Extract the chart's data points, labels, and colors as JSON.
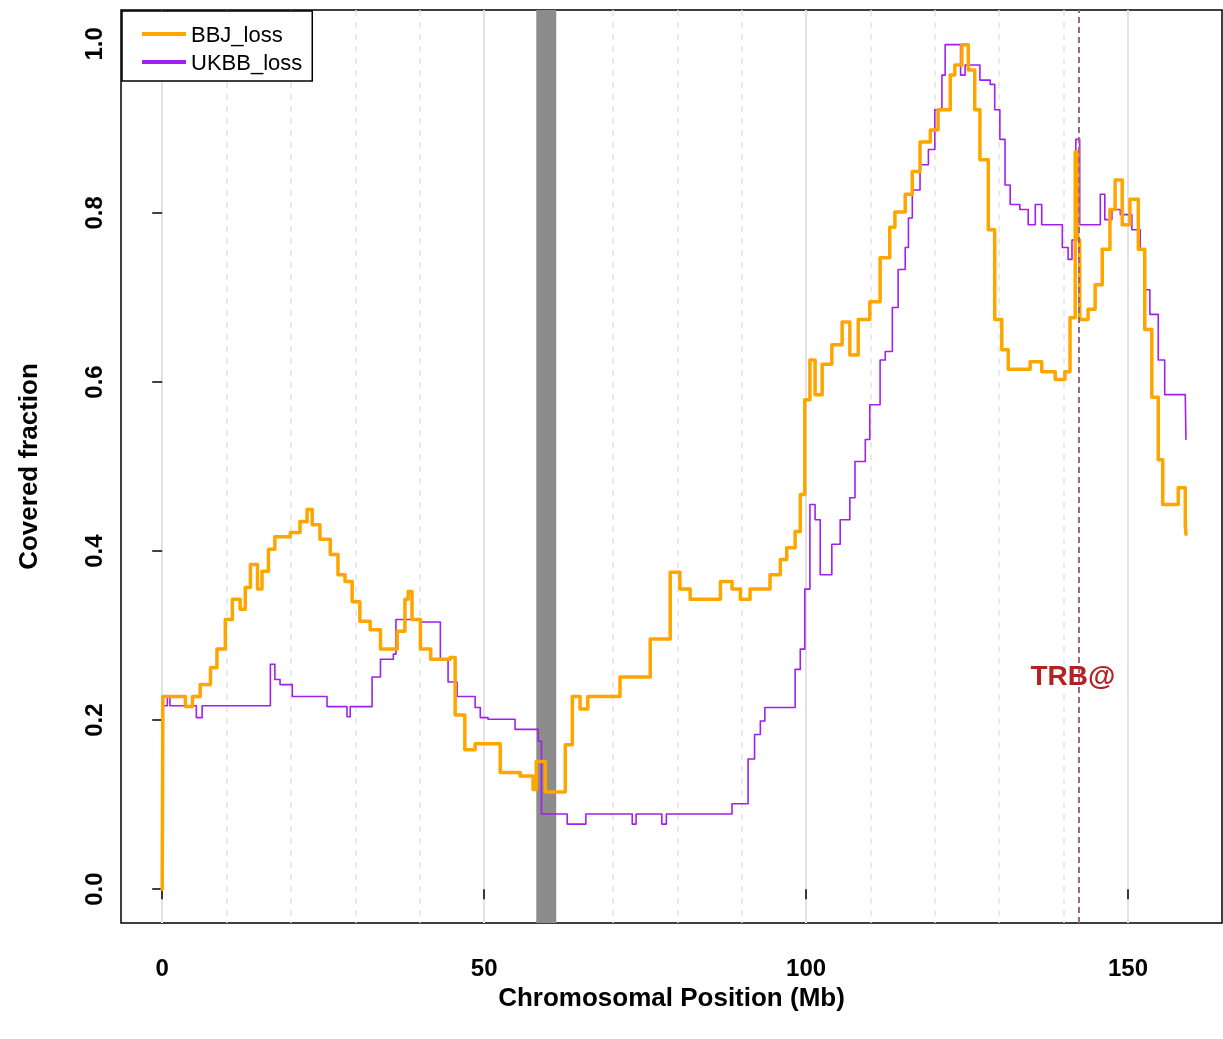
{
  "chart_data": {
    "type": "step",
    "xlabel": "Chromosomal Position (Mb)",
    "ylabel": "Covered fraction",
    "xlim": [
      -6.4,
      164.6
    ],
    "xticks": [
      0,
      50,
      100,
      150
    ],
    "ylim": [
      -0.04,
      1.04
    ],
    "yticks": [
      {
        "value": 0,
        "label": "0.0"
      },
      {
        "value": 0.2,
        "label": "0.2"
      },
      {
        "value": 0.4,
        "label": "0.4"
      },
      {
        "value": 0.6,
        "label": "0.6"
      },
      {
        "value": 0.8,
        "label": "0.8"
      },
      {
        "value": 1,
        "label": "1.0"
      }
    ],
    "grid": "x",
    "legend": "top left",
    "marker": "none",
    "line_style": "solid",
    "series": [
      {
        "name": "BBJ_loss",
        "color": "#ffa500",
        "x": [
          0,
          0.1,
          2.8,
          3.6,
          4.7,
          5.9,
          7.5,
          8.5,
          9.8,
          10.9,
          12.1,
          12.9,
          13.7,
          14.8,
          15.5,
          16.5,
          17.5,
          19.9,
          21.4,
          22.5,
          23.3,
          24.5,
          26.1,
          27.3,
          28.4,
          29.5,
          30.7,
          32.3,
          33.9,
          35.4,
          36.5,
          37.7,
          38.2,
          38.8,
          40.1,
          41.7,
          43.2,
          44.7,
          45.5,
          47,
          48.6,
          50.9,
          52.5,
          55.6,
          57.6,
          58.1,
          59.5,
          61.8,
          62.6,
          63.7,
          64.9,
          66.1,
          69.6,
          71.1,
          75,
          75.8,
          77.3,
          78.9,
          80.4,
          82,
          85.9,
          86.7,
          88.5,
          89.8,
          91.3,
          93.6,
          94.4,
          96,
          97,
          98.3,
          99.1,
          99.8,
          100.6,
          101.4,
          102.5,
          104,
          105.6,
          106.8,
          108.1,
          109.9,
          111.5,
          113,
          113.8,
          115.4,
          116.5,
          117.7,
          119.3,
          120.5,
          122.4,
          123.1,
          124.2,
          125.2,
          126.2,
          127,
          128.3,
          129.3,
          130.4,
          131.4,
          133.2,
          134.8,
          136.6,
          138.7,
          140.2,
          141,
          141.8,
          142.2,
          142.5,
          143.8,
          144.9,
          146,
          147.2,
          148,
          149.1,
          150.3,
          151.6,
          152.6,
          153.7,
          154.7,
          155.4,
          156.8,
          157.8,
          158.9,
          159
        ],
        "values": [
          0,
          0.228,
          0.228,
          0.216,
          0.228,
          0.242,
          0.262,
          0.284,
          0.319,
          0.343,
          0.331,
          0.357,
          0.384,
          0.355,
          0.376,
          0.402,
          0.417,
          0.422,
          0.435,
          0.449,
          0.431,
          0.414,
          0.396,
          0.372,
          0.364,
          0.34,
          0.317,
          0.307,
          0.284,
          0.284,
          0.305,
          0.343,
          0.352,
          0.319,
          0.284,
          0.272,
          0.272,
          0.274,
          0.206,
          0.165,
          0.172,
          0.172,
          0.138,
          0.134,
          0.118,
          0.151,
          0.115,
          0.115,
          0.171,
          0.228,
          0.213,
          0.228,
          0.228,
          0.251,
          0.251,
          0.296,
          0.296,
          0.375,
          0.355,
          0.343,
          0.343,
          0.364,
          0.355,
          0.343,
          0.355,
          0.355,
          0.372,
          0.39,
          0.404,
          0.423,
          0.467,
          0.579,
          0.626,
          0.585,
          0.621,
          0.644,
          0.671,
          0.632,
          0.674,
          0.695,
          0.747,
          0.783,
          0.801,
          0.822,
          0.849,
          0.884,
          0.898,
          0.922,
          0.963,
          0.975,
          0.999,
          0.969,
          0.922,
          0.863,
          0.78,
          0.674,
          0.638,
          0.615,
          0.615,
          0.624,
          0.612,
          0.603,
          0.612,
          0.676,
          0.872,
          0.768,
          0.674,
          0.686,
          0.715,
          0.757,
          0.804,
          0.839,
          0.786,
          0.816,
          0.757,
          0.662,
          0.582,
          0.508,
          0.455,
          0.455,
          0.475,
          0.431,
          0.42
        ]
      },
      {
        "name": "UKBB_loss",
        "color": "#a020f0",
        "x": [
          0,
          0.1,
          0.8,
          1.2,
          4.8,
          5.3,
          6.2,
          10.6,
          16.8,
          17.5,
          18.3,
          20.2,
          25.3,
          25.6,
          28.4,
          28.7,
          29.2,
          31.5,
          32.6,
          33.9,
          35.9,
          36.3,
          38.5,
          40.1,
          42.7,
          43.2,
          44.4,
          45.8,
          47,
          48.6,
          49.4,
          50.6,
          54.8,
          58.4,
          58.9,
          62.6,
          62.9,
          65.4,
          65.8,
          72.7,
          73,
          73.6,
          77.3,
          77.6,
          78.3,
          88.2,
          88.5,
          90.5,
          91,
          92,
          92.9,
          93.6,
          97.5,
          98.3,
          99.1,
          99.8,
          100.6,
          101.4,
          102.2,
          103.1,
          104,
          105.3,
          106.8,
          107.6,
          109.2,
          109.9,
          111.5,
          112.3,
          113.4,
          114.3,
          115.4,
          115.9,
          116.5,
          117.7,
          119,
          120,
          121.1,
          121.6,
          123.1,
          124,
          124.7,
          126.2,
          127,
          128.6,
          129.3,
          130.1,
          130.9,
          131.7,
          133.2,
          134.5,
          135.6,
          136.6,
          138.7,
          139.8,
          140.7,
          141.3,
          141.9,
          142.5,
          144.1,
          145.7,
          146.4,
          147.5,
          148.8,
          149.5,
          150.6,
          151.9,
          152.6,
          153.4,
          154.7,
          155.7,
          158.9,
          159
        ],
        "values": [
          0,
          0.217,
          0.228,
          0.217,
          0.217,
          0.203,
          0.217,
          0.217,
          0.266,
          0.248,
          0.242,
          0.228,
          0.228,
          0.216,
          0.216,
          0.204,
          0.216,
          0.216,
          0.251,
          0.272,
          0.278,
          0.319,
          0.319,
          0.316,
          0.316,
          0.272,
          0.245,
          0.228,
          0.228,
          0.215,
          0.203,
          0.201,
          0.189,
          0.175,
          0.089,
          0.089,
          0.077,
          0.077,
          0.089,
          0.089,
          0.077,
          0.089,
          0.089,
          0.077,
          0.089,
          0.089,
          0.101,
          0.101,
          0.154,
          0.183,
          0.199,
          0.215,
          0.215,
          0.26,
          0.284,
          0.355,
          0.455,
          0.437,
          0.372,
          0.372,
          0.408,
          0.437,
          0.463,
          0.506,
          0.532,
          0.573,
          0.626,
          0.636,
          0.688,
          0.733,
          0.759,
          0.794,
          0.827,
          0.857,
          0.875,
          0.922,
          0.963,
          0.999,
          0.999,
          0.963,
          0.975,
          0.975,
          0.957,
          0.952,
          0.922,
          0.887,
          0.833,
          0.81,
          0.804,
          0.786,
          0.81,
          0.786,
          0.786,
          0.759,
          0.745,
          0.768,
          0.887,
          0.786,
          0.786,
          0.822,
          0.792,
          0.804,
          0.798,
          0.798,
          0.78,
          0.757,
          0.709,
          0.68,
          0.626,
          0.585,
          0.583,
          0.532
        ]
      }
    ],
    "bands": [
      {
        "axis": "x",
        "from": 58.1,
        "to": 61.2,
        "color": "#8c8c8c"
      }
    ],
    "ref_lines": [
      {
        "axis": "x",
        "value": 142.3,
        "label": "TRB@",
        "color": "#9b6b7b",
        "line_style": "dashed"
      }
    ]
  }
}
